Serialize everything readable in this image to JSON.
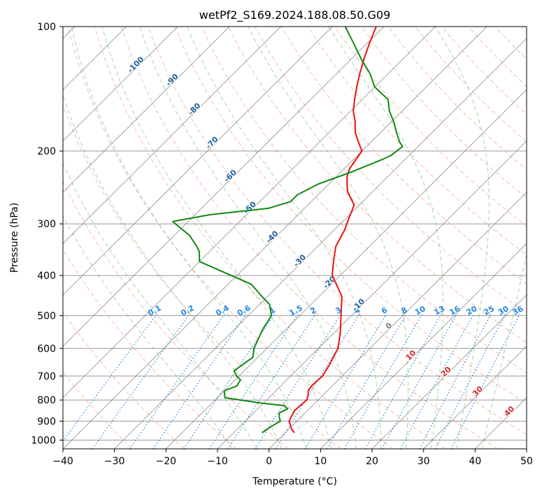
{
  "chart_data": {
    "type": "line",
    "subtype": "skew-t log-p diagram",
    "title": "wetPf2_S169.2024.188.08.50.G09",
    "xlabel": "Temperature (°C)",
    "ylabel": "Pressure (hPa)",
    "xlim": [
      -40,
      50
    ],
    "ylim": [
      1050,
      100
    ],
    "y_scale": "log",
    "x_ticks": [
      -40,
      -30,
      -20,
      -10,
      0,
      10,
      20,
      30,
      40,
      50
    ],
    "x_tick_labels": [
      "−40",
      "−30",
      "−20",
      "−10",
      "0",
      "10",
      "20",
      "30",
      "40",
      "50"
    ],
    "y_ticks": [
      1000,
      900,
      800,
      700,
      600,
      500,
      400,
      300,
      200,
      100
    ],
    "y_tick_labels": [
      "1000",
      "900",
      "800",
      "700",
      "600",
      "500",
      "400",
      "300",
      "200",
      "100"
    ],
    "skew": 35,
    "grid": true,
    "colors": {
      "temperature": "#ee1111",
      "dewpoint": "#118811",
      "dry_adiabats": "#fa8060",
      "moist_adiabats": "#5aa85a",
      "mixing_ratio": "#1e7fd8",
      "isotherms": "#777777",
      "pressure_grid": "#999999",
      "moist_label": "#1f5f99",
      "theta_label": "#d62728",
      "zero_label": "#777777",
      "mixing_label": "#1e88e5"
    },
    "series": [
      {
        "key": "temperature",
        "points": [
          [
            1.8,
            960
          ],
          [
            0.5,
            940
          ],
          [
            -1.5,
            900
          ],
          [
            -2.5,
            850
          ],
          [
            -2.2,
            800
          ],
          [
            -2.8,
            780
          ],
          [
            -3.7,
            760
          ],
          [
            -4.0,
            740
          ],
          [
            -3.8,
            700
          ],
          [
            -4.6,
            660
          ],
          [
            -6.2,
            600
          ],
          [
            -8.8,
            550
          ],
          [
            -12.0,
            500
          ],
          [
            -15.5,
            450
          ],
          [
            -19.0,
            420
          ],
          [
            -21.5,
            400
          ],
          [
            -24.0,
            370
          ],
          [
            -26.5,
            340
          ],
          [
            -28.0,
            310
          ],
          [
            -29.5,
            290
          ],
          [
            -31.0,
            270
          ],
          [
            -33.0,
            260
          ],
          [
            -35.0,
            250
          ],
          [
            -36.5,
            240
          ],
          [
            -38.0,
            230
          ],
          [
            -39.0,
            220
          ],
          [
            -40.0,
            200
          ],
          [
            -42.5,
            190
          ],
          [
            -45.0,
            180
          ],
          [
            -47.0,
            170
          ],
          [
            -49.5,
            160
          ],
          [
            -51.5,
            150
          ],
          [
            -53.5,
            140
          ],
          [
            -55.5,
            130
          ],
          [
            -57.5,
            120
          ],
          [
            -59.5,
            110
          ],
          [
            -61.5,
            100
          ]
        ]
      },
      {
        "key": "dewpoint",
        "points": [
          [
            -4.5,
            960
          ],
          [
            -4.0,
            930
          ],
          [
            -3.2,
            900
          ],
          [
            -4.2,
            880
          ],
          [
            -5.0,
            860
          ],
          [
            -4.2,
            840
          ],
          [
            -5.5,
            825
          ],
          [
            -10.0,
            815
          ],
          [
            -18.5,
            790
          ],
          [
            -20.0,
            760
          ],
          [
            -18.5,
            740
          ],
          [
            -19.0,
            715
          ],
          [
            -20.5,
            700
          ],
          [
            -22.0,
            680
          ],
          [
            -21.5,
            655
          ],
          [
            -21.0,
            630
          ],
          [
            -22.5,
            600
          ],
          [
            -23.5,
            570
          ],
          [
            -24.5,
            540
          ],
          [
            -25.5,
            500
          ],
          [
            -28.0,
            470
          ],
          [
            -31.0,
            450
          ],
          [
            -35.5,
            420
          ],
          [
            -44.0,
            390
          ],
          [
            -50.0,
            370
          ],
          [
            -52.0,
            350
          ],
          [
            -53.5,
            340
          ],
          [
            -57.0,
            320
          ],
          [
            -62.0,
            300
          ],
          [
            -63.0,
            296
          ],
          [
            -57.0,
            285
          ],
          [
            -47.0,
            275
          ],
          [
            -44.0,
            265
          ],
          [
            -44.0,
            255
          ],
          [
            -42.0,
            240
          ],
          [
            -38.0,
            225
          ],
          [
            -34.5,
            210
          ],
          [
            -33.5,
            205
          ],
          [
            -33.0,
            195
          ],
          [
            -34.5,
            190
          ],
          [
            -37.0,
            180
          ],
          [
            -39.5,
            170
          ],
          [
            -42.5,
            160
          ],
          [
            -45.0,
            150
          ],
          [
            -50.0,
            140
          ],
          [
            -53.5,
            130
          ],
          [
            -58.0,
            120
          ],
          [
            -62.5,
            110
          ],
          [
            -67.5,
            100
          ]
        ]
      }
    ],
    "annotations": {
      "moist_adiabat_labels": [
        {
          "text": "-100",
          "t": -100,
          "p": 125
        },
        {
          "text": "-90",
          "t": -90,
          "p": 136
        },
        {
          "text": "-80",
          "t": -80,
          "p": 160
        },
        {
          "text": "-70",
          "t": -70,
          "p": 193
        },
        {
          "text": "-60",
          "t": -60,
          "p": 232
        },
        {
          "text": "-50",
          "t": -50,
          "p": 277
        },
        {
          "text": "-40",
          "t": -40,
          "p": 326
        },
        {
          "text": "-30",
          "t": -30,
          "p": 372
        },
        {
          "text": "-20",
          "t": -20,
          "p": 420
        },
        {
          "text": "-10",
          "t": -10,
          "p": 476
        },
        {
          "text": "0",
          "t": 0,
          "p": 535
        }
      ],
      "theta_labels": [
        {
          "text": "10",
          "t": 10,
          "p": 630
        },
        {
          "text": "20",
          "t": 20,
          "p": 690
        },
        {
          "text": "30",
          "t": 30,
          "p": 770
        },
        {
          "text": "40",
          "t": 40,
          "p": 860
        }
      ],
      "mixing_ratio_labels": [
        "0.1",
        "0.2",
        "0.4",
        "0.6",
        "1",
        "1.5",
        "2",
        "3",
        "4",
        "6",
        "8",
        "10",
        "13",
        "16",
        "20",
        "25",
        "30",
        "36"
      ]
    }
  }
}
